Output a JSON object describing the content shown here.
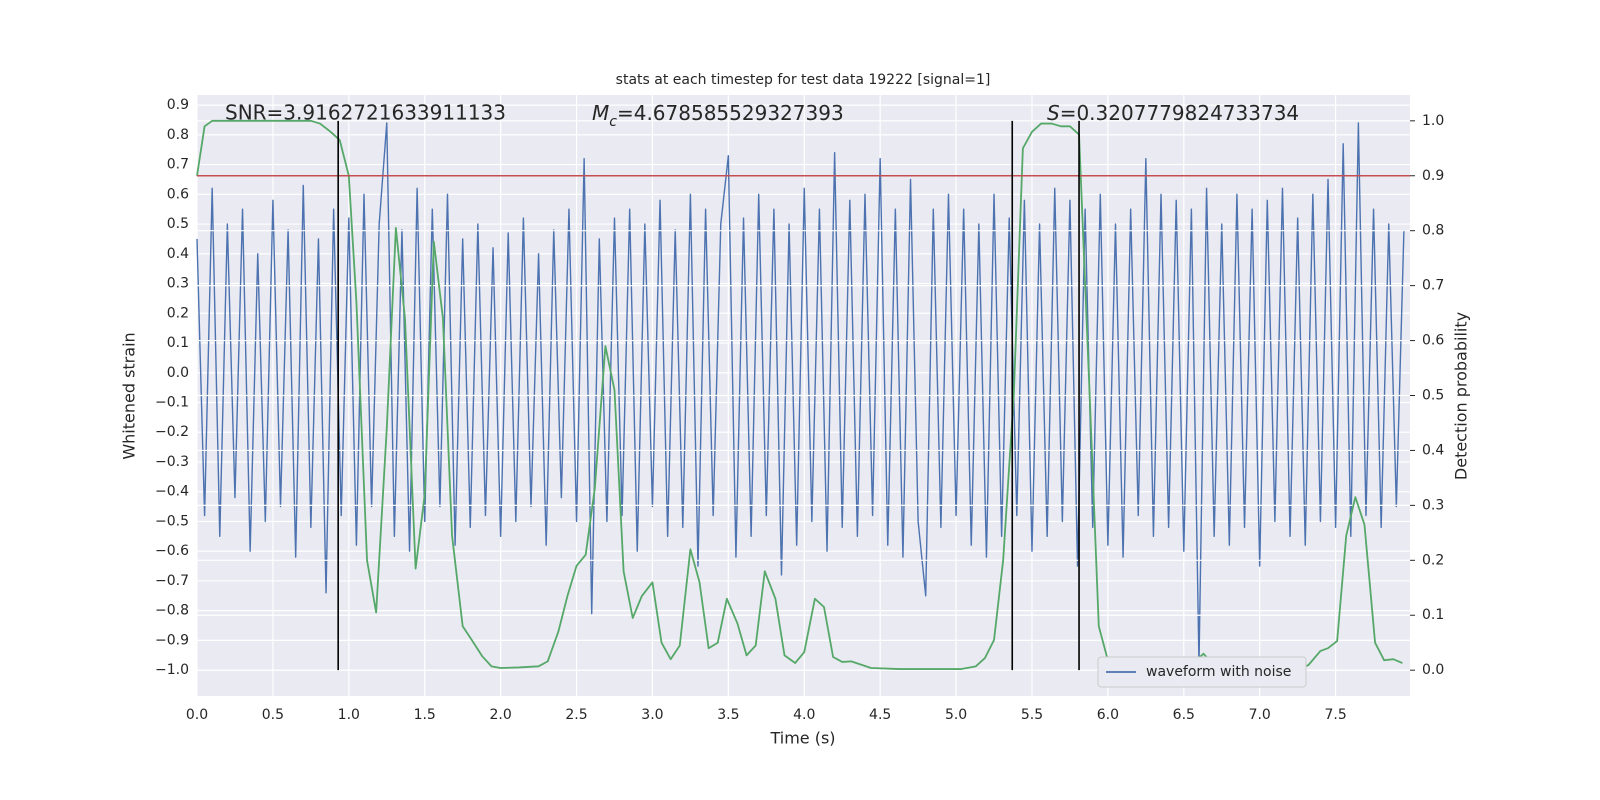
{
  "chart_data": {
    "type": "line",
    "title": "stats at each timestep for test data 19222 [signal=1]",
    "xlabel": "Time (s)",
    "ylabel": "Whitened strain",
    "y2label": "Detection probability",
    "xlim": [
      0,
      7.99
    ],
    "ylim": [
      -1.087,
      0.934
    ],
    "y2lim": [
      -0.047,
      1.047
    ],
    "xticks": [
      {
        "value": 0,
        "label": "0.0"
      },
      0.5,
      {
        "value": 1,
        "label": "1.0"
      },
      1.5,
      {
        "value": 2,
        "label": "2.0"
      },
      2.5,
      {
        "value": 3,
        "label": "3.0"
      },
      3.5,
      {
        "value": 4,
        "label": "4.0"
      },
      4.5,
      {
        "value": 5,
        "label": "5.0"
      },
      5.5,
      {
        "value": 6,
        "label": "6.0"
      },
      6.5,
      {
        "value": 7,
        "label": "7.0"
      },
      7.5
    ],
    "yticks": [
      {
        "value": -1,
        "label": "−1.0"
      },
      {
        "value": -0.9,
        "label": "−0.9"
      },
      {
        "value": -0.8,
        "label": "−0.8"
      },
      {
        "value": -0.7,
        "label": "−0.7"
      },
      {
        "value": -0.6,
        "label": "−0.6"
      },
      {
        "value": -0.5,
        "label": "−0.5"
      },
      {
        "value": -0.4,
        "label": "−0.4"
      },
      {
        "value": -0.3,
        "label": "−0.3"
      },
      {
        "value": -0.2,
        "label": "−0.2"
      },
      {
        "value": -0.1,
        "label": "−0.1"
      },
      {
        "value": 0,
        "label": "0.0"
      },
      0.1,
      0.2,
      0.3,
      0.4,
      0.5,
      0.6,
      0.7,
      0.8,
      0.9
    ],
    "y2ticks": [
      {
        "value": 0,
        "label": "0.0"
      },
      0.1,
      0.2,
      0.3,
      0.4,
      0.5,
      0.6,
      0.7,
      0.8,
      0.9,
      {
        "value": 1,
        "label": "1.0"
      }
    ],
    "grid": true,
    "legend": "lower right",
    "series": [
      {
        "name": "waveform with noise",
        "color": "#4c72b0",
        "x": [
          0,
          0.05,
          0.1,
          0.15,
          0.2,
          0.25,
          0.3,
          0.35,
          0.4,
          0.45,
          0.5,
          0.55,
          0.6,
          0.65,
          0.7,
          0.75,
          0.8,
          0.85,
          0.9,
          0.95,
          1,
          1.05,
          1.1,
          1.15,
          1.2,
          1.25,
          1.3,
          1.35,
          1.4,
          1.45,
          1.5,
          1.55,
          1.6,
          1.65,
          1.7,
          1.75,
          1.8,
          1.85,
          1.9,
          1.95,
          2,
          2.05,
          2.1,
          2.15,
          2.2,
          2.25,
          2.3,
          2.35,
          2.4,
          2.45,
          2.5,
          2.55,
          2.6,
          2.65,
          2.7,
          2.75,
          2.8,
          2.85,
          2.9,
          2.95,
          3,
          3.05,
          3.1,
          3.15,
          3.2,
          3.25,
          3.3,
          3.35,
          3.4,
          3.45,
          3.5,
          3.55,
          3.6,
          3.65,
          3.7,
          3.75,
          3.8,
          3.85,
          3.9,
          3.95,
          4,
          4.05,
          4.1,
          4.15,
          4.2,
          4.25,
          4.3,
          4.35,
          4.4,
          4.45,
          4.5,
          4.55,
          4.6,
          4.65,
          4.7,
          4.75,
          4.8,
          4.85,
          4.9,
          4.95,
          5,
          5.05,
          5.1,
          5.15,
          5.2,
          5.25,
          5.3,
          5.35,
          5.4,
          5.45,
          5.5,
          5.55,
          5.6,
          5.65,
          5.7,
          5.75,
          5.8,
          5.85,
          5.9,
          5.95,
          6,
          6.05,
          6.1,
          6.15,
          6.2,
          6.25,
          6.3,
          6.35,
          6.4,
          6.45,
          6.5,
          6.55,
          6.6,
          6.65,
          6.7,
          6.75,
          6.8,
          6.85,
          6.9,
          6.95,
          7,
          7.05,
          7.1,
          7.15,
          7.2,
          7.25,
          7.3,
          7.35,
          7.4,
          7.45,
          7.5,
          7.55,
          7.6,
          7.65,
          7.7,
          7.75,
          7.8,
          7.85,
          7.9,
          7.95
        ],
        "values": [
          0.45,
          -0.48,
          0.62,
          -0.55,
          0.5,
          -0.42,
          0.55,
          -0.6,
          0.4,
          -0.5,
          0.58,
          -0.45,
          0.48,
          -0.62,
          0.63,
          -0.52,
          0.45,
          -0.74,
          0.55,
          -0.48,
          0.52,
          -0.58,
          0.6,
          -0.45,
          0.5,
          0.84,
          -0.55,
          0.48,
          -0.6,
          0.62,
          -0.5,
          0.55,
          -0.45,
          0.6,
          -0.58,
          0.45,
          -0.52,
          0.5,
          -0.48,
          0.42,
          -0.55,
          0.47,
          -0.5,
          0.52,
          -0.45,
          0.4,
          -0.58,
          0.48,
          -0.42,
          0.55,
          -0.5,
          0.72,
          -0.81,
          0.45,
          -0.5,
          0.52,
          -0.48,
          0.55,
          -0.6,
          0.5,
          -0.45,
          0.58,
          -0.55,
          0.48,
          -0.52,
          0.6,
          -0.65,
          0.55,
          -0.48,
          0.5,
          0.73,
          -0.62,
          0.52,
          -0.55,
          0.6,
          -0.48,
          0.55,
          -0.68,
          0.5,
          -0.58,
          0.62,
          -0.5,
          0.55,
          -0.6,
          0.74,
          -0.52,
          0.58,
          -0.55,
          0.6,
          -0.48,
          0.72,
          -0.58,
          0.55,
          -0.62,
          0.65,
          -0.5,
          -0.75,
          0.55,
          -0.52,
          0.6,
          -0.48,
          0.55,
          -0.58,
          0.5,
          -0.62,
          0.6,
          -0.55,
          0.52,
          -0.48,
          0.58,
          -0.6,
          0.5,
          -0.55,
          0.62,
          -0.5,
          0.58,
          -0.65,
          0.55,
          -0.52,
          0.6,
          -0.58,
          0.5,
          -0.62,
          0.55,
          -0.48,
          0.72,
          -0.55,
          0.6,
          -0.52,
          0.58,
          -0.6,
          0.55,
          -0.98,
          0.62,
          -0.55,
          0.5,
          -0.58,
          0.6,
          -0.52,
          0.55,
          -0.65,
          0.58,
          -0.5,
          0.62,
          -0.55,
          0.52,
          -0.58,
          0.6,
          -0.5,
          0.65,
          -0.52,
          0.77,
          -0.55,
          0.84,
          -0.48,
          0.55,
          -0.52,
          0.5,
          -0.45,
          0.48
        ]
      },
      {
        "name": null,
        "color": "#55a868",
        "axis": "y2",
        "x": [
          0,
          0.05,
          0.1,
          0.75,
          0.81,
          0.88,
          0.94,
          1,
          1.05,
          1.12,
          1.18,
          1.25,
          1.31,
          1.37,
          1.44,
          1.5,
          1.56,
          1.62,
          1.68,
          1.75,
          1.81,
          1.88,
          1.94,
          2,
          2.12,
          2.25,
          2.31,
          2.38,
          2.44,
          2.5,
          2.56,
          2.62,
          2.69,
          2.75,
          2.81,
          2.87,
          2.93,
          3,
          3.06,
          3.12,
          3.18,
          3.25,
          3.31,
          3.37,
          3.43,
          3.49,
          3.56,
          3.62,
          3.68,
          3.74,
          3.81,
          3.87,
          3.94,
          4,
          4.07,
          4.13,
          4.19,
          4.25,
          4.31,
          4.44,
          4.63,
          5.03,
          5.13,
          5.19,
          5.25,
          5.31,
          5.38,
          5.44,
          5.5,
          5.56,
          5.63,
          5.69,
          5.75,
          5.81,
          5.88,
          5.94,
          6,
          6.07,
          6.13,
          6.26,
          6.32,
          6.38,
          6.44,
          6.51,
          6.57,
          6.63,
          6.69,
          6.76,
          6.94,
          7.07,
          7.14,
          7.27,
          7.32,
          7.4,
          7.45,
          7.51,
          7.57,
          7.63,
          7.69,
          7.76,
          7.82,
          7.88,
          7.94
        ],
        "values": [
          0.9,
          0.99,
          1,
          1,
          0.995,
          0.98,
          0.965,
          0.9,
          0.67,
          0.2,
          0.105,
          0.44,
          0.805,
          0.64,
          0.185,
          0.32,
          0.78,
          0.64,
          0.245,
          0.08,
          0.055,
          0.025,
          0.007,
          0.004,
          0.005,
          0.007,
          0.016,
          0.07,
          0.135,
          0.19,
          0.21,
          0.33,
          0.59,
          0.51,
          0.18,
          0.095,
          0.135,
          0.16,
          0.05,
          0.02,
          0.045,
          0.22,
          0.16,
          0.04,
          0.05,
          0.13,
          0.085,
          0.027,
          0.045,
          0.18,
          0.13,
          0.027,
          0.013,
          0.033,
          0.13,
          0.115,
          0.024,
          0.015,
          0.016,
          0.004,
          0.002,
          0.002,
          0.007,
          0.022,
          0.055,
          0.2,
          0.5,
          0.95,
          0.98,
          0.995,
          0.995,
          0.99,
          0.99,
          0.975,
          0.5,
          0.08,
          0.018,
          0.009,
          0.004,
          0.004,
          0.009,
          0.018,
          0.009,
          0.005,
          0.015,
          0.03,
          0.011,
          0.005,
          0.004,
          0.004,
          0.007,
          0.005,
          0.009,
          0.035,
          0.04,
          0.053,
          0.245,
          0.315,
          0.265,
          0.05,
          0.018,
          0.02,
          0.013
        ]
      }
    ],
    "hline": {
      "y": 0.9,
      "axis": "y2",
      "color": "#c44e52"
    },
    "vlines": {
      "x": [
        0.93,
        5.37,
        5.81
      ],
      "ymin": 0,
      "ymax": 1,
      "axis": "y2",
      "color": "#000000"
    },
    "annotations": [
      {
        "text": "SNR=3.9162721633911133"
      },
      {
        "symbol": "M",
        "subscript": "c",
        "text": "=4.678585529327393"
      },
      {
        "symbol": "S",
        "text": "=0.3207779824733734"
      }
    ]
  }
}
